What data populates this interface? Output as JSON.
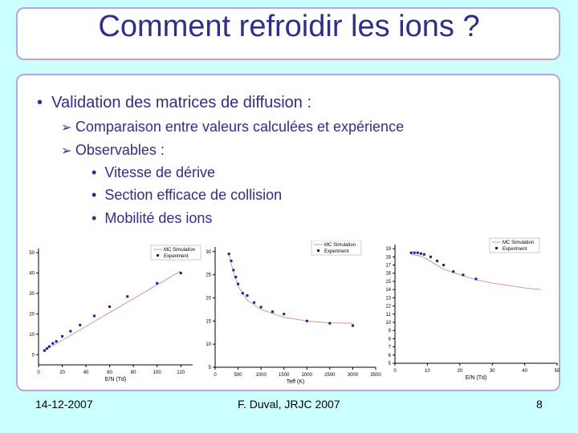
{
  "slide": {
    "title": "Comment refroidir les ions ?",
    "bullet": "Validation des matrices de diffusion :",
    "sub_bullets": [
      "Comparaison entre valeurs calculées et expérience",
      "Observables :"
    ],
    "sub_sub_bullets": [
      "Vitesse de dérive",
      "Section efficace de collision",
      "Mobilité des ions"
    ],
    "footer": {
      "date": "14-12-2007",
      "author": "F. Duval, JRJC 2007",
      "page": "8"
    }
  },
  "chart_data": [
    {
      "type": "scatter",
      "xlabel": "E/N (Td)",
      "ylabel": "",
      "xlim": [
        0,
        130
      ],
      "ylim": [
        -5,
        52
      ],
      "xticks": [
        0,
        20,
        40,
        60,
        80,
        100,
        120
      ],
      "yticks": [
        0,
        10,
        20,
        30,
        40,
        50
      ],
      "legend": [
        "MC Simulation",
        "Experiment"
      ],
      "series": [
        {
          "name": "MC Simulation",
          "kind": "line",
          "x": [
            5,
            120
          ],
          "y": [
            2,
            41
          ]
        },
        {
          "name": "Experiment",
          "kind": "points",
          "x": [
            5,
            7,
            9,
            12,
            15,
            20,
            27,
            35,
            47,
            60,
            75,
            100,
            120
          ],
          "y": [
            2,
            3,
            4,
            5.5,
            6.5,
            9,
            11.5,
            14.5,
            19,
            23.5,
            28.5,
            35,
            40
          ]
        }
      ]
    },
    {
      "type": "scatter",
      "xlabel": "Teff (K)",
      "ylabel": "",
      "xlim": [
        0,
        3500
      ],
      "ylim": [
        5,
        31
      ],
      "xticks": [
        0,
        500,
        1000,
        1500,
        2000,
        2500,
        3000,
        3500
      ],
      "yticks": [
        5,
        10,
        15,
        20,
        25,
        30
      ],
      "legend": [
        "MC Simulation",
        "Experiment"
      ],
      "series": [
        {
          "name": "MC Simulation",
          "kind": "line",
          "x": [
            300,
            400,
            500,
            700,
            1000,
            1500,
            2000,
            2500,
            3000
          ],
          "y": [
            29.5,
            25.5,
            22.5,
            19.5,
            17.5,
            15.8,
            15.0,
            14.6,
            14.5
          ]
        },
        {
          "name": "Experiment",
          "kind": "points",
          "x": [
            300,
            350,
            400,
            450,
            500,
            600,
            700,
            850,
            1000,
            1250,
            1500,
            2000,
            2500,
            3000
          ],
          "y": [
            29.5,
            28,
            26,
            24.5,
            23,
            21,
            20.5,
            19,
            18,
            17,
            16.5,
            15,
            14.5,
            14
          ]
        }
      ]
    },
    {
      "type": "scatter",
      "xlabel": "E/N (Td)",
      "ylabel": "",
      "xlim": [
        0,
        50
      ],
      "ylim": [
        5,
        19.5
      ],
      "xticks": [
        0,
        10,
        20,
        30,
        40,
        50
      ],
      "yticks": [
        5,
        6,
        7,
        8,
        9,
        10,
        11,
        12,
        13,
        14,
        15,
        16,
        17,
        18,
        19
      ],
      "legend": [
        "MC Simulation",
        "Experiment"
      ],
      "series": [
        {
          "name": "MC Simulation",
          "kind": "line",
          "x": [
            5,
            8,
            10,
            12,
            15,
            20,
            25,
            30,
            35,
            40,
            45
          ],
          "y": [
            18.3,
            18.1,
            17.7,
            17.2,
            16.5,
            15.8,
            15.2,
            14.8,
            14.5,
            14.2,
            14.0
          ]
        },
        {
          "name": "Experiment",
          "kind": "points",
          "x": [
            5,
            6,
            7,
            8,
            9,
            11,
            13,
            15,
            18,
            21,
            25
          ],
          "y": [
            18.5,
            18.5,
            18.5,
            18.4,
            18.3,
            18,
            17.5,
            17,
            16.2,
            15.8,
            15.3
          ]
        }
      ]
    }
  ]
}
